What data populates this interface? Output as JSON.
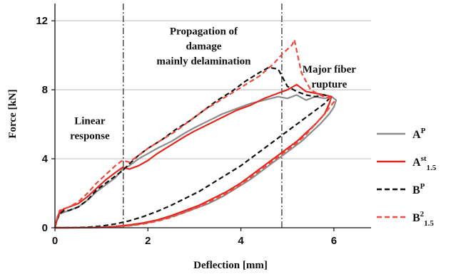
{
  "chart_data": {
    "type": "line",
    "title": "",
    "xlabel": "Deflection [mm]",
    "ylabel": "Force [kN]",
    "xlim": [
      0,
      6.8
    ],
    "ylim": [
      0,
      13
    ],
    "xticks": [
      0,
      2,
      4,
      6
    ],
    "yticks": [
      0,
      4,
      8,
      12
    ],
    "grid": "horizontal",
    "legend_position": "right",
    "vertical_lines": [
      1.47,
      4.88
    ],
    "annotations": [
      {
        "lines": [
          "Linear",
          "response"
        ],
        "x": 0.75,
        "y": 6.0
      },
      {
        "lines": [
          "Propagation of",
          "damage",
          "mainly delamination"
        ],
        "x": 3.2,
        "y": 11.2
      },
      {
        "lines": [
          "Major fiber",
          "rupture"
        ],
        "x": 5.9,
        "y": 9.0
      }
    ],
    "series": [
      {
        "name": "A",
        "sup": "P",
        "sub": "",
        "color": "#8c8c8c",
        "dash": "solid",
        "x": [
          0,
          0.05,
          0.1,
          0.2,
          0.3,
          0.5,
          0.7,
          0.9,
          1.1,
          1.3,
          1.45,
          1.6,
          1.8,
          2.0,
          2.2,
          2.5,
          2.8,
          3.0,
          3.3,
          3.6,
          3.9,
          4.2,
          4.5,
          4.8,
          5.0,
          5.2,
          5.4,
          5.6,
          5.8,
          5.95,
          6.05,
          6.0,
          5.9,
          5.7,
          5.5,
          5.3,
          5.1,
          4.9,
          4.7,
          4.5,
          4.2,
          3.9,
          3.6,
          3.3,
          3.0,
          2.7,
          2.4,
          2.1,
          1.8,
          1.5,
          1.2,
          0.9,
          0.6,
          0.3,
          0.1,
          0
        ],
        "y": [
          0,
          0.5,
          0.8,
          0.9,
          1.0,
          1.2,
          1.6,
          2.1,
          2.5,
          2.9,
          3.4,
          3.6,
          4.0,
          4.3,
          4.6,
          5.0,
          5.5,
          5.8,
          6.2,
          6.6,
          6.9,
          7.2,
          7.4,
          7.6,
          7.5,
          7.7,
          7.4,
          7.6,
          7.5,
          7.6,
          7.4,
          7.0,
          6.6,
          6.0,
          5.5,
          5.0,
          4.6,
          4.2,
          3.8,
          3.4,
          2.8,
          2.3,
          1.8,
          1.4,
          1.1,
          0.8,
          0.55,
          0.35,
          0.2,
          0.1,
          0.05,
          0.02,
          0.01,
          0,
          0,
          0
        ]
      },
      {
        "name": "A",
        "sup": "st",
        "sub": "1.5",
        "color": "#e3261e",
        "dash": "solid",
        "x": [
          0,
          0.05,
          0.1,
          0.2,
          0.3,
          0.5,
          0.7,
          0.9,
          1.1,
          1.3,
          1.45,
          1.6,
          1.8,
          2.0,
          2.2,
          2.5,
          2.8,
          3.0,
          3.3,
          3.6,
          3.9,
          4.2,
          4.5,
          4.8,
          5.0,
          5.2,
          5.4,
          5.6,
          5.8,
          5.95,
          5.9,
          5.8,
          5.6,
          5.4,
          5.2,
          5.0,
          4.8,
          4.6,
          4.3,
          4.0,
          3.7,
          3.4,
          3.1,
          2.8,
          2.5,
          2.2,
          1.9,
          1.6,
          1.3,
          1.0,
          0.7,
          0.4,
          0.2,
          0
        ],
        "y": [
          0,
          0.6,
          0.9,
          1.1,
          1.2,
          1.4,
          1.8,
          2.3,
          2.8,
          3.2,
          3.5,
          3.4,
          3.6,
          3.9,
          4.3,
          4.8,
          5.3,
          5.6,
          6.0,
          6.4,
          6.8,
          7.1,
          7.5,
          7.8,
          8.0,
          8.3,
          7.9,
          7.8,
          7.7,
          7.6,
          7.2,
          6.6,
          6.0,
          5.5,
          5.0,
          4.6,
          4.2,
          3.8,
          3.2,
          2.6,
          2.1,
          1.7,
          1.3,
          1.0,
          0.7,
          0.45,
          0.28,
          0.16,
          0.08,
          0.03,
          0.01,
          0,
          0,
          0
        ]
      },
      {
        "name": "B",
        "sup": "P",
        "sub": "",
        "color": "#111111",
        "dash": "dashed",
        "x": [
          0,
          0.05,
          0.1,
          0.2,
          0.3,
          0.5,
          0.7,
          0.9,
          1.1,
          1.3,
          1.45,
          1.6,
          1.8,
          2.0,
          2.3,
          2.6,
          2.9,
          3.2,
          3.5,
          3.8,
          4.1,
          4.4,
          4.6,
          4.8,
          5.0,
          5.2,
          5.4,
          5.6,
          5.8,
          5.9,
          5.8,
          5.6,
          5.4,
          5.2,
          5.0,
          4.8,
          4.6,
          4.3,
          4.0,
          3.7,
          3.4,
          3.1,
          2.8,
          2.5,
          2.2,
          1.9,
          1.6,
          1.3,
          1.0,
          0.7,
          0.4,
          0.2,
          0
        ],
        "y": [
          0,
          0.5,
          0.8,
          1.0,
          1.0,
          1.2,
          1.6,
          2.2,
          2.6,
          3.0,
          3.3,
          3.7,
          4.2,
          4.6,
          5.1,
          5.7,
          6.2,
          6.8,
          7.4,
          7.9,
          8.5,
          9.0,
          9.3,
          9.2,
          8.2,
          7.9,
          7.7,
          7.6,
          7.7,
          7.5,
          7.2,
          6.8,
          6.4,
          6.0,
          5.6,
          5.2,
          4.8,
          4.2,
          3.6,
          3.1,
          2.6,
          2.1,
          1.7,
          1.3,
          0.95,
          0.65,
          0.4,
          0.22,
          0.1,
          0.03,
          0.01,
          0,
          0
        ]
      },
      {
        "name": "B",
        "sup": "2",
        "sub": "1.5",
        "color": "#f04a3c",
        "dash": "dashed",
        "x": [
          0,
          0.05,
          0.1,
          0.2,
          0.3,
          0.5,
          0.7,
          0.9,
          1.1,
          1.3,
          1.45,
          1.6,
          1.8,
          2.0,
          2.3,
          2.6,
          2.9,
          3.2,
          3.5,
          3.8,
          4.1,
          4.4,
          4.7,
          4.9,
          5.1,
          5.15,
          5.3,
          5.5,
          5.7,
          5.9,
          6.0,
          5.8,
          5.6,
          5.4,
          5.2,
          5.0,
          4.8,
          4.6,
          4.3,
          4.0,
          3.7,
          3.4,
          3.1,
          2.8,
          2.5,
          2.2,
          1.9,
          1.6,
          1.3,
          1.0,
          0.7,
          0.4,
          0.2,
          0
        ],
        "y": [
          0,
          0.6,
          1.0,
          1.1,
          1.2,
          1.5,
          2.0,
          2.6,
          3.1,
          3.6,
          3.9,
          3.8,
          4.2,
          4.6,
          5.1,
          5.6,
          6.2,
          6.8,
          7.3,
          7.8,
          8.3,
          8.8,
          9.5,
          10.1,
          10.6,
          10.9,
          9.0,
          8.0,
          7.7,
          7.5,
          7.3,
          6.6,
          6.0,
          5.4,
          4.9,
          4.5,
          4.1,
          3.7,
          3.1,
          2.5,
          2.0,
          1.6,
          1.2,
          0.9,
          0.6,
          0.38,
          0.22,
          0.11,
          0.05,
          0.02,
          0.01,
          0,
          0,
          0
        ]
      }
    ]
  }
}
